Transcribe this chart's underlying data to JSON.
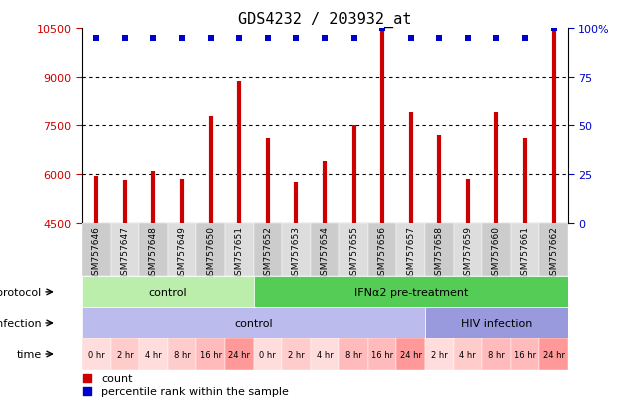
{
  "title": "GDS4232 / 203932_at",
  "samples": [
    "GSM757646",
    "GSM757647",
    "GSM757648",
    "GSM757649",
    "GSM757650",
    "GSM757651",
    "GSM757652",
    "GSM757653",
    "GSM757654",
    "GSM757655",
    "GSM757656",
    "GSM757657",
    "GSM757658",
    "GSM757659",
    "GSM757660",
    "GSM757661",
    "GSM757662"
  ],
  "counts": [
    5950,
    5800,
    6100,
    5850,
    7800,
    8870,
    7100,
    5750,
    6400,
    7500,
    10400,
    7900,
    7200,
    5850,
    7900,
    7100,
    10400
  ],
  "percentile": [
    95,
    95,
    95,
    95,
    95,
    95,
    95,
    95,
    95,
    95,
    100,
    95,
    95,
    95,
    95,
    95,
    100
  ],
  "ylim_left": [
    4500,
    10500
  ],
  "ylim_right": [
    0,
    100
  ],
  "yticks_left": [
    4500,
    6000,
    7500,
    9000,
    10500
  ],
  "yticks_right": [
    0,
    25,
    50,
    75,
    100
  ],
  "bar_color": "#cc0000",
  "dot_color": "#0000cc",
  "bg_color": "#ffffff",
  "protocol_labels": [
    "control",
    "IFNα2 pre-treatment"
  ],
  "protocol_color_control": "#bbeeaa",
  "protocol_color_ifn": "#55cc55",
  "infection_labels": [
    "control",
    "HIV infection"
  ],
  "infection_color_control": "#bbbbee",
  "infection_color_hiv": "#9999dd",
  "time_labels": [
    "0 hr",
    "2 hr",
    "4 hr",
    "8 hr",
    "16 hr",
    "24 hr",
    "0 hr",
    "2 hr",
    "4 hr",
    "8 hr",
    "16 hr",
    "24 hr",
    "2 hr",
    "4 hr",
    "8 hr",
    "16 hr",
    "24 hr"
  ],
  "time_colors": [
    "#ffdddd",
    "#ffcccc",
    "#ffdddd",
    "#ffcccc",
    "#ffbbbb",
    "#ff9999",
    "#ffdddd",
    "#ffcccc",
    "#ffdddd",
    "#ffbbbb",
    "#ffbbbb",
    "#ff9999",
    "#ffdddd",
    "#ffcccc",
    "#ffbbbb",
    "#ffbbbb",
    "#ff9999"
  ],
  "label_protocol": "protocol",
  "label_infection": "infection",
  "label_time": "time",
  "legend_count_color": "#cc0000",
  "legend_pct_color": "#0000cc"
}
